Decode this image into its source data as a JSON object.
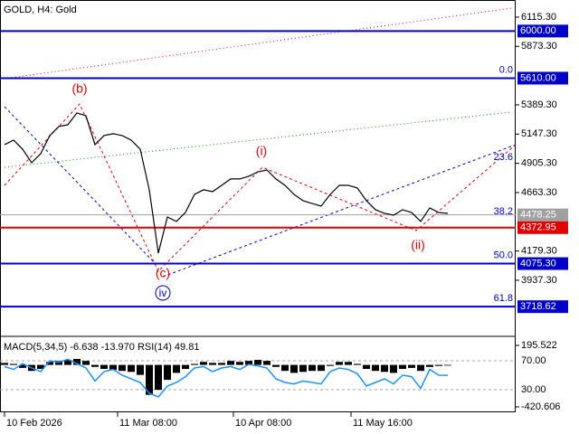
{
  "chart_data": [
    {
      "type": "line",
      "title": "GOLD, H4:  Gold",
      "series": [
        {
          "color": "#000000",
          "values": [
            5060,
            5097,
            5022,
            4910,
            4985,
            5135,
            5210,
            5225,
            5322,
            5299,
            5060,
            5135,
            5150,
            5135,
            5097,
            5022,
            4686,
            4162,
            4461,
            4424,
            4499,
            4648,
            4686,
            4671,
            4723,
            4776,
            4776,
            4798,
            4835,
            4850,
            4776,
            4723,
            4648,
            4596,
            4573,
            4551,
            4648,
            4723,
            4723,
            4701,
            4596,
            4521,
            4491,
            4476,
            4521,
            4498,
            4424,
            4536,
            4498,
            4491
          ]
        }
      ],
      "ylim": [
        3488,
        6257
      ],
      "yticks": [
        {
          "value": 6115.3,
          "label": "6115.30"
        },
        {
          "value": 5873.3,
          "label": "5873.30"
        },
        {
          "value": 5389.3,
          "label": "5389.30"
        },
        {
          "value": 5147.3,
          "label": "5147.30"
        },
        {
          "value": 4905.3,
          "label": "4905.30"
        },
        {
          "value": 4663.3,
          "label": "4663.30"
        },
        {
          "value": 4179.3,
          "label": "4179.30"
        },
        {
          "value": 3937.3,
          "label": "3937.30"
        }
      ],
      "xlim": [
        -0.5,
        56.5
      ],
      "xticks": [
        {
          "value": 0,
          "label": "10 Feb 2026"
        },
        {
          "value": 12.5,
          "label": "11 Mar 08:00"
        },
        {
          "value": 25.3,
          "label": "10 Apr 08:00"
        },
        {
          "value": 38.3,
          "label": "11 May 16:00"
        }
      ],
      "levels": [
        {
          "value": 6000,
          "label": "6000.00",
          "color": "#0000c8"
        },
        {
          "value": 5610,
          "label": "5610.00",
          "color": "#0000c8"
        },
        {
          "value": 4478.25,
          "label": "4478.25",
          "color": "#a0a0a0"
        },
        {
          "value": 4372.95,
          "label": "4372.95",
          "color": "#e00000"
        },
        {
          "value": 4075.3,
          "label": "4075.30",
          "color": "#0000c8"
        },
        {
          "value": 3718.62,
          "label": "3718.62",
          "color": "#0000c8"
        }
      ],
      "fib_levels": [
        {
          "value": 5610,
          "label": "0.0"
        },
        {
          "value": 4885.5,
          "label": "23.6"
        },
        {
          "value": 4437,
          "label": "38.2"
        },
        {
          "value": 4075.3,
          "label": "50.0"
        },
        {
          "value": 3718.62,
          "label": "61.8"
        }
      ],
      "annotations": [
        "(b)",
        "(i)",
        "(c)",
        "(ii)",
        "iv"
      ]
    },
    {
      "type": "indicator",
      "title": "MACD(5,34,5) -6.638 -13.970 RSI(14) 49.81",
      "histogram": {
        "color": "#000000",
        "values": [
          20,
          10,
          -30,
          -60,
          -40,
          30,
          40,
          50,
          60,
          40,
          -20,
          -40,
          -50,
          -60,
          -70,
          -100,
          -300,
          -250,
          -150,
          -80,
          -40,
          10,
          30,
          20,
          20,
          40,
          30,
          40,
          50,
          40,
          -20,
          -60,
          -80,
          -70,
          -60,
          -60,
          -10,
          30,
          30,
          10,
          -40,
          -60,
          -70,
          -80,
          -40,
          -30,
          -60,
          -20,
          -10,
          -6.638
        ]
      },
      "rsi": {
        "color": "#1e90ff",
        "values": [
          62,
          58,
          66,
          60,
          55,
          70,
          68,
          72,
          66,
          60,
          42,
          55,
          58,
          50,
          45,
          40,
          25,
          20,
          35,
          40,
          48,
          60,
          62,
          55,
          60,
          62,
          58,
          65,
          63,
          60,
          45,
          40,
          38,
          42,
          40,
          38,
          55,
          60,
          58,
          52,
          35,
          40,
          45,
          38,
          50,
          48,
          32,
          58,
          50,
          49.81
        ]
      },
      "ylim": [
        -420.606,
        195.522
      ],
      "yticks": [
        {
          "value": 195.522,
          "label": "195.522"
        },
        {
          "value": -420.606,
          "label": "-420.606"
        }
      ],
      "rsi_lim": [
        0,
        100
      ],
      "rsi_ticks": [
        {
          "value": 70,
          "label": "70.00"
        },
        {
          "value": 30,
          "label": "30.00"
        }
      ]
    }
  ]
}
